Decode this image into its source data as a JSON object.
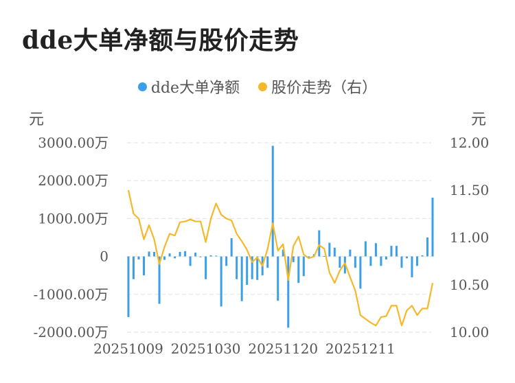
{
  "title": "dde大单净额与股价走势",
  "legend": {
    "series1": "dde大单净额",
    "series2": "股价走势（右）"
  },
  "units": {
    "left": "元",
    "right": "元"
  },
  "colors": {
    "bar": "#3a9fe8",
    "line": "#f5b82a",
    "grid": "#e6e6e6",
    "text": "#555555"
  },
  "chart_data": {
    "type": "bar+line",
    "title": "dde大单净额与股价走势",
    "y_left": {
      "label": "元",
      "range": [
        -2000,
        3000
      ],
      "ticks": [
        -2000,
        -1000,
        0,
        1000,
        2000,
        3000
      ],
      "tick_labels": [
        "-2000.00万",
        "-1000.00万",
        "0",
        "1000.00万",
        "2000.00万",
        "3000.00万"
      ]
    },
    "y_right": {
      "label": "元",
      "range": [
        10.0,
        12.0
      ],
      "ticks": [
        10.0,
        10.5,
        11.0,
        11.5,
        12.0
      ],
      "tick_labels": [
        "10.00",
        "10.50",
        "11.00",
        "11.50",
        "12.00"
      ]
    },
    "x_tick_labels": [
      {
        "index": 0,
        "label": "20251009"
      },
      {
        "index": 15,
        "label": "20251030"
      },
      {
        "index": 30,
        "label": "20251120"
      },
      {
        "index": 45,
        "label": "20251211"
      }
    ],
    "grid": true,
    "legend_position": "top",
    "series": [
      {
        "name": "dde大单净额",
        "type": "bar",
        "axis": "left",
        "values": [
          -1600,
          -600,
          -80,
          -500,
          130,
          120,
          -1250,
          -90,
          80,
          -50,
          120,
          140,
          -250,
          100,
          -20,
          -600,
          30,
          20,
          -1320,
          -250,
          480,
          -600,
          -1180,
          -750,
          -600,
          -620,
          -500,
          -300,
          2920,
          -1170,
          180,
          -1880,
          -150,
          -700,
          -520,
          -50,
          60,
          690,
          10,
          360,
          230,
          -300,
          -450,
          180,
          -300,
          -850,
          400,
          -250,
          350,
          -250,
          -80,
          280,
          280,
          -300,
          -50,
          -550,
          -250,
          30,
          500,
          1550
        ],
        "unit": "万"
      },
      {
        "name": "股价走势（右）",
        "type": "line",
        "axis": "right",
        "values": [
          11.5,
          11.25,
          11.2,
          10.98,
          11.13,
          10.98,
          10.72,
          10.9,
          11.04,
          11.02,
          11.16,
          11.17,
          11.19,
          11.17,
          11.17,
          10.95,
          11.2,
          11.36,
          11.24,
          11.2,
          11.18,
          11.04,
          10.96,
          10.87,
          10.74,
          10.79,
          10.7,
          10.88,
          11.15,
          10.86,
          10.93,
          10.55,
          10.91,
          11.01,
          10.82,
          10.78,
          10.8,
          10.92,
          10.88,
          10.63,
          10.52,
          10.65,
          10.73,
          10.58,
          10.44,
          10.18,
          10.14,
          10.1,
          10.07,
          10.16,
          10.17,
          10.28,
          10.28,
          10.07,
          10.23,
          10.28,
          10.18,
          10.25,
          10.25,
          10.52
        ]
      }
    ]
  }
}
